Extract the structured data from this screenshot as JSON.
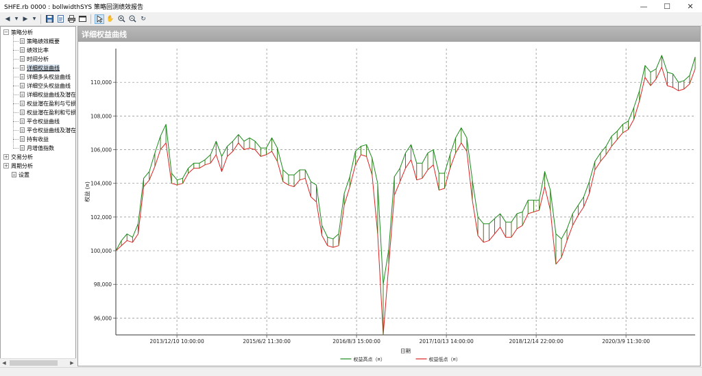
{
  "window": {
    "title": "SHFE.rb 0000 : bollwidthSYS 策略回测绩效报告",
    "controls": [
      "minimize-icon",
      "maximize-icon",
      "close-icon"
    ]
  },
  "toolbar": {
    "icons": [
      "back-icon",
      "dropdown-arrow-icon",
      "forward-icon",
      "dropdown-arrow-icon",
      "save-icon",
      "export-icon",
      "print-icon",
      "report-icon",
      "pointer-icon",
      "hand-pan-icon",
      "zoom-in-icon",
      "zoom-out-icon",
      "refresh-icon"
    ],
    "selected": "pointer-icon"
  },
  "tree": {
    "groups": [
      {
        "label": "策略分析",
        "expanded": true,
        "children": [
          "策略绩效概要",
          "绩效比率",
          "时间分析",
          "详细权益曲线",
          "详细多头权益曲线",
          "详细空头权益曲线",
          "详细权益曲线及潜在",
          "权益潜在盈利与亏损",
          "权益潜在盈利和亏损",
          "平仓权益曲线",
          "平仓权益曲线及潜在",
          "持有收益",
          "月增值指数"
        ],
        "active_child": "详细权益曲线"
      },
      {
        "label": "交易分析",
        "expanded": false,
        "children": []
      },
      {
        "label": "周期分析",
        "expanded": false,
        "children": []
      }
    ],
    "trailing_item": "设置"
  },
  "panel": {
    "header": "详细权益曲线"
  },
  "chart_data": {
    "type": "line",
    "title": "",
    "xlabel": "日期",
    "ylabel": "权益 (¤)",
    "x_ticks": [
      "2013/12/10 10:00:00",
      "2015/6/2 11:30:00",
      "2016/8/3 15:00:00",
      "2017/10/13 14:00:00",
      "2018/12/14 22:00:00",
      "2020/3/9 11:30:00"
    ],
    "ylim": [
      95000,
      112000
    ],
    "y_ticks": [
      96000,
      98000,
      100000,
      102000,
      104000,
      106000,
      108000,
      110000
    ],
    "y_tick_labels": [
      "96,000",
      "98,000",
      "100,000",
      "102,000",
      "104,000",
      "106,000",
      "108,000",
      "110,000"
    ],
    "grid": true,
    "legend_position": "bottom",
    "series": [
      {
        "name": "权益高点（¤）",
        "color": "#1a8a1a",
        "values": [
          100000,
          100600,
          101000,
          100800,
          101600,
          104300,
          104700,
          105800,
          106800,
          107500,
          104600,
          104200,
          104300,
          104900,
          105200,
          105200,
          105400,
          105700,
          106500,
          105600,
          106200,
          106500,
          106900,
          106500,
          106700,
          106500,
          106100,
          106100,
          106700,
          106100,
          104800,
          104500,
          104500,
          104800,
          104800,
          104100,
          103900,
          101500,
          100800,
          100700,
          101000,
          103400,
          104400,
          105900,
          106200,
          106300,
          105500,
          104000,
          98000,
          100100,
          104400,
          104900,
          105800,
          106300,
          105200,
          105200,
          105800,
          106000,
          104600,
          104600,
          105700,
          106700,
          107300,
          106700,
          104200,
          102000,
          101600,
          101600,
          101900,
          102200,
          101700,
          101700,
          102200,
          102300,
          103000,
          103000,
          103000,
          104700,
          103600,
          101000,
          100700,
          101300,
          102200,
          102700,
          103200,
          104100,
          105300,
          105800,
          106200,
          106800,
          107100,
          107500,
          107700,
          108500,
          109500,
          111000,
          110600,
          110800,
          111600,
          110600,
          110500,
          110000,
          110100,
          110400,
          111500
        ],
        "y_labels": []
      },
      {
        "name": "权益低点（¤）",
        "color": "#e02020",
        "values": [
          100000,
          100300,
          100600,
          100500,
          101000,
          103800,
          104200,
          105000,
          106000,
          106400,
          104000,
          103900,
          104000,
          104600,
          104900,
          104900,
          105100,
          105200,
          105700,
          104700,
          105600,
          105900,
          106400,
          106000,
          106100,
          106000,
          105600,
          105700,
          105900,
          105300,
          104100,
          103900,
          103800,
          104200,
          104300,
          103200,
          102900,
          100900,
          100300,
          100200,
          100300,
          102700,
          103800,
          105100,
          105700,
          105600,
          104500,
          101000,
          95000,
          99200,
          103300,
          104100,
          104900,
          105400,
          104200,
          104300,
          104800,
          105100,
          103600,
          103700,
          104900,
          105800,
          106400,
          105900,
          103000,
          100900,
          100500,
          100600,
          101000,
          101400,
          100800,
          100800,
          101300,
          101500,
          102200,
          102300,
          102400,
          103800,
          102400,
          99200,
          99600,
          100600,
          101500,
          102100,
          102600,
          103400,
          104800,
          105300,
          105700,
          106200,
          106600,
          107000,
          107200,
          107800,
          108900,
          110300,
          109800,
          110200,
          110900,
          109800,
          109700,
          109500,
          109600,
          109900,
          110800
        ],
        "y_labels": []
      }
    ]
  }
}
